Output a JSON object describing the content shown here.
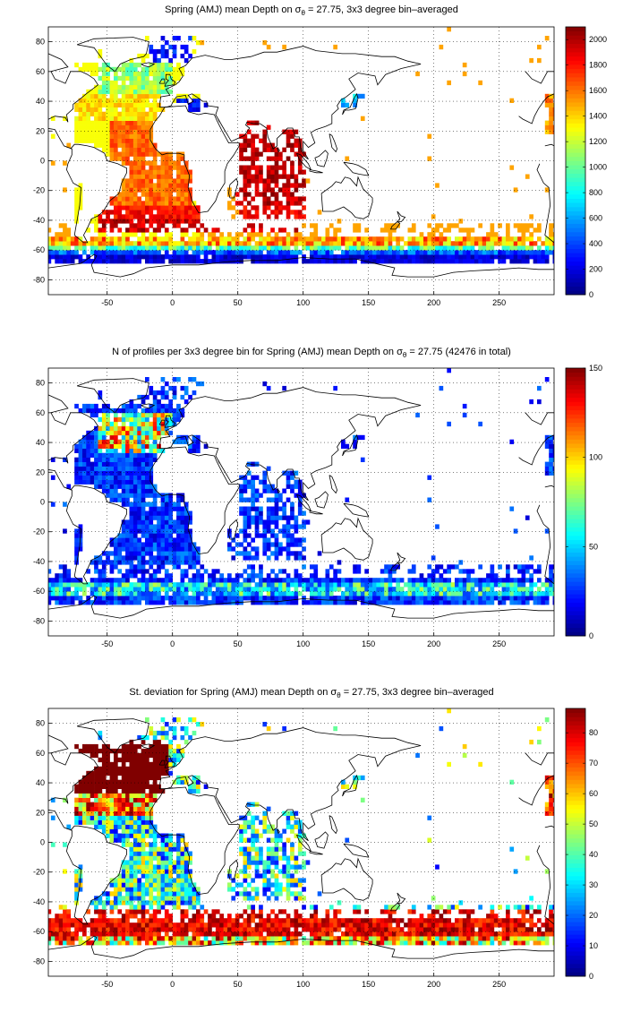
{
  "panels": [
    {
      "title_pre": "Spring (AMJ) mean Depth on ",
      "title_sigma": "σ",
      "title_sub": "θ",
      "title_post": " = 27.75, 3x3 degree bin–averaged",
      "colorbar": {
        "ticks": [
          "0",
          "200",
          "400",
          "600",
          "800",
          "1000",
          "1200",
          "1400",
          "1600",
          "1800",
          "2000"
        ],
        "min": 0,
        "max": 2100
      }
    },
    {
      "title_pre": "N of profiles per 3x3 degree bin for Spring (AMJ) mean Depth on ",
      "title_sigma": "σ",
      "title_sub": "θ",
      "title_post": " = 27.75 (42476 in total)",
      "colorbar": {
        "ticks": [
          "0",
          "50",
          "100",
          "150"
        ],
        "min": 0,
        "max": 150
      }
    },
    {
      "title_pre": "St. deviation for Spring (AMJ) mean Depth on ",
      "title_sigma": "σ",
      "title_sub": "θ",
      "title_post": " = 27.75, 3x3 degree bin–averaged",
      "colorbar": {
        "ticks": [
          "0",
          "10",
          "20",
          "30",
          "40",
          "50",
          "60",
          "70",
          "80"
        ],
        "min": 0,
        "max": 88
      }
    }
  ],
  "axes": {
    "x_ticks": [
      "-50",
      "0",
      "50",
      "100",
      "150",
      "200",
      "250"
    ],
    "y_ticks": [
      "80",
      "60",
      "40",
      "20",
      "0",
      "-20",
      "-40",
      "-60",
      "-80"
    ],
    "xlim": [
      -95,
      292
    ],
    "ylim": [
      -90,
      90
    ],
    "grid": "dotted"
  },
  "colormap": "jet"
}
